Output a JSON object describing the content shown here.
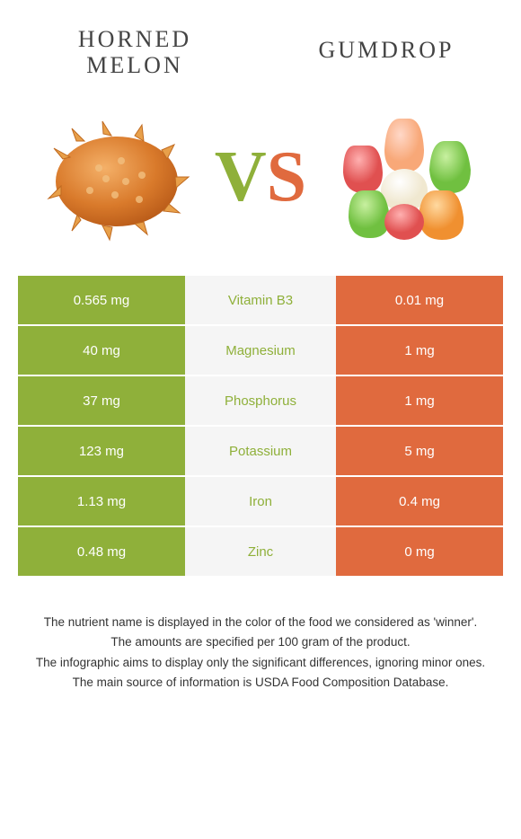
{
  "left": {
    "name_line1": "HORNED",
    "name_line2": "MELON"
  },
  "right": {
    "name_line1": "GUMDROP"
  },
  "vs": {
    "v": "V",
    "s": "S"
  },
  "colors": {
    "left_bg": "#8fb03a",
    "right_bg": "#e06a3e",
    "mid_bg": "#f5f5f5",
    "cell_text": "#ffffff"
  },
  "rows": [
    {
      "left": "0.565 mg",
      "label": "Vitamin B3",
      "right": "0.01 mg",
      "winner": "left"
    },
    {
      "left": "40 mg",
      "label": "Magnesium",
      "right": "1 mg",
      "winner": "left"
    },
    {
      "left": "37 mg",
      "label": "Phosphorus",
      "right": "1 mg",
      "winner": "left"
    },
    {
      "left": "123 mg",
      "label": "Potassium",
      "right": "5 mg",
      "winner": "left"
    },
    {
      "left": "1.13 mg",
      "label": "Iron",
      "right": "0.4 mg",
      "winner": "left"
    },
    {
      "left": "0.48 mg",
      "label": "Zinc",
      "right": "0 mg",
      "winner": "left"
    }
  ],
  "footer": [
    "The nutrient name is displayed in the color of the food we considered as 'winner'.",
    "The amounts are specified per 100 gram of the product.",
    "The infographic aims to display only the significant differences, ignoring minor ones.",
    "The main source of information is USDA Food Composition Database."
  ]
}
